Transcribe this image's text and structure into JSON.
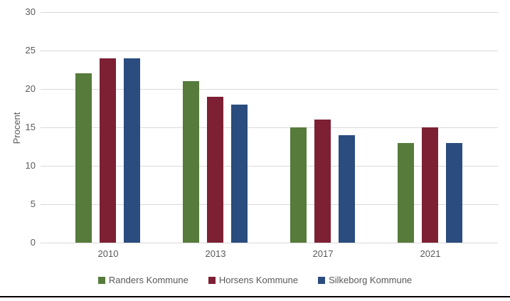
{
  "chart_data": {
    "type": "bar",
    "title": "",
    "ylabel": "Procent",
    "xlabel": "",
    "categories": [
      "2010",
      "2013",
      "2017",
      "2021"
    ],
    "series": [
      {
        "name": "Randers Kommune",
        "color": "#567B3B",
        "values": [
          22,
          21,
          15,
          13
        ]
      },
      {
        "name": "Horsens Kommune",
        "color": "#7D2034",
        "values": [
          24,
          19,
          16,
          15
        ]
      },
      {
        "name": "Silkeborg Kommune",
        "color": "#2A4C7E",
        "values": [
          24,
          18,
          14,
          13
        ]
      }
    ],
    "ylim": [
      0,
      30
    ],
    "yticks": [
      0,
      5,
      10,
      15,
      20,
      25,
      30
    ],
    "grid": true,
    "legend_position": "bottom"
  },
  "colors": {
    "gridline": "#D9D9D9",
    "baseline": "#D9D9D9",
    "axis_text": "#595959",
    "bottom_rule": "#000000",
    "background": "#FFFFFF"
  }
}
